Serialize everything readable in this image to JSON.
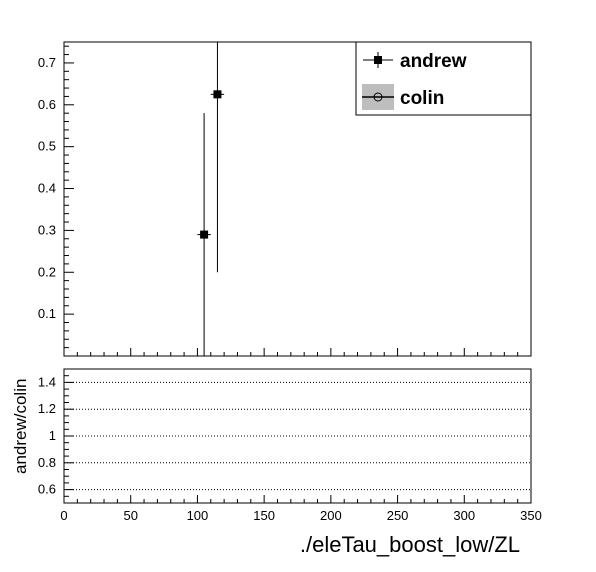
{
  "chart_data": [
    {
      "type": "scatter",
      "title": "",
      "xlabel": "",
      "ylabel": "",
      "xlim": [
        0,
        350
      ],
      "ylim": [
        0,
        0.75
      ],
      "yticks": [
        0.1,
        0.2,
        0.3,
        0.4,
        0.5,
        0.6,
        0.7
      ],
      "ytick_labels": [
        "0.1",
        "0.2",
        "0.3",
        "0.4",
        "0.5",
        "0.6",
        "0.7"
      ],
      "legend": {
        "placement": "top-right",
        "entries": [
          "andrew",
          "colin"
        ]
      },
      "series": [
        {
          "name": "andrew",
          "marker": "filled-square",
          "points": [
            {
              "x": 105,
              "y": 0.29,
              "ylo": 0.0,
              "yhi": 0.58,
              "xerr": 5
            },
            {
              "x": 115,
              "y": 0.625,
              "ylo": 0.2,
              "yhi": 0.75,
              "xerr": 5
            }
          ]
        },
        {
          "name": "colin",
          "marker": "open-circle",
          "points": []
        }
      ]
    },
    {
      "type": "scatter",
      "title": "",
      "xlabel": "./eleTau_boost_low/ZL",
      "ylabel": "andrew/colin",
      "xlim": [
        0,
        350
      ],
      "ylim": [
        0.5,
        1.5
      ],
      "xticks": [
        0,
        50,
        100,
        150,
        200,
        250,
        300,
        350
      ],
      "xtick_labels": [
        "0",
        "50",
        "100",
        "150",
        "200",
        "250",
        "300",
        "350"
      ],
      "yticks": [
        0.6,
        0.8,
        1.0,
        1.2,
        1.4
      ],
      "ytick_labels": [
        "0.6",
        "0.8",
        "1",
        "1.2",
        "1.4"
      ],
      "grid": "horizontal-dotted",
      "series": []
    }
  ]
}
